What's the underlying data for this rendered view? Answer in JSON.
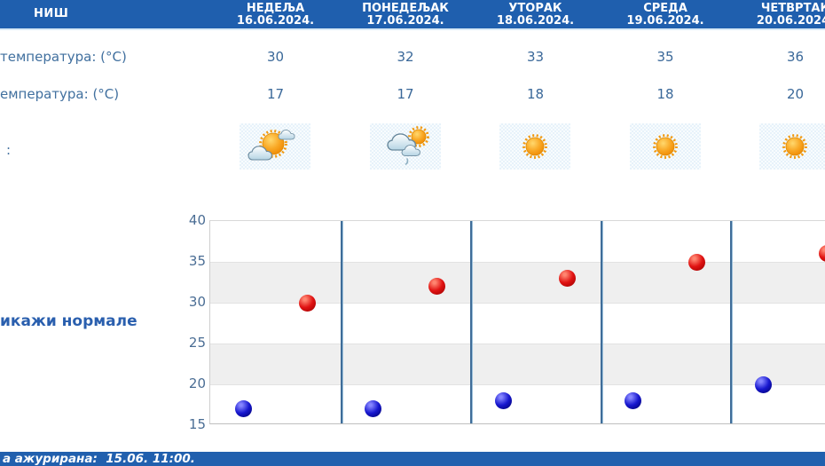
{
  "header": {
    "city": "НИШ",
    "days": [
      {
        "name": "НЕДЕЉА",
        "date": "16.06.2024."
      },
      {
        "name": "ПОНЕДЕЉАК",
        "date": "17.06.2024."
      },
      {
        "name": "УТОРАК",
        "date": "18.06.2024."
      },
      {
        "name": "СРЕДА",
        "date": "19.06.2024."
      },
      {
        "name": "ЧЕТВРТАК",
        "date": "20.06.2024."
      }
    ]
  },
  "table": {
    "max_row": {
      "label": "температура: (°C)",
      "values": [
        "30",
        "32",
        "33",
        "35",
        "36"
      ]
    },
    "min_row": {
      "label": "емпература: (°C)",
      "values": [
        "17",
        "17",
        "18",
        "18",
        "20"
      ]
    },
    "weather_row": {
      "label": ":",
      "icons": [
        "sun-with-clouds",
        "clouds-sun-rain",
        "sunny",
        "sunny",
        "sunny"
      ]
    }
  },
  "link": {
    "show_normals": "икажи нормале"
  },
  "chart_data": {
    "type": "scatter",
    "categories": [
      "16.06.2024.",
      "17.06.2024.",
      "18.06.2024.",
      "19.06.2024.",
      "20.06.2024."
    ],
    "series": [
      {
        "name": "max-temperature",
        "color": "#cc1111",
        "values": [
          30,
          32,
          33,
          35,
          36
        ]
      },
      {
        "name": "min-temperature",
        "color": "#1111cc",
        "values": [
          17,
          17,
          18,
          18,
          20
        ]
      }
    ],
    "ylim": [
      15,
      40
    ],
    "yticks": [
      40,
      35,
      30,
      25,
      20,
      15
    ],
    "bands_gray": [
      [
        35,
        30
      ],
      [
        25,
        20
      ]
    ],
    "grid": true,
    "separator_color": "#3f6d99",
    "legend": "none"
  },
  "statusbar": {
    "text": "а ажурирана:  15.06. 11:00."
  }
}
